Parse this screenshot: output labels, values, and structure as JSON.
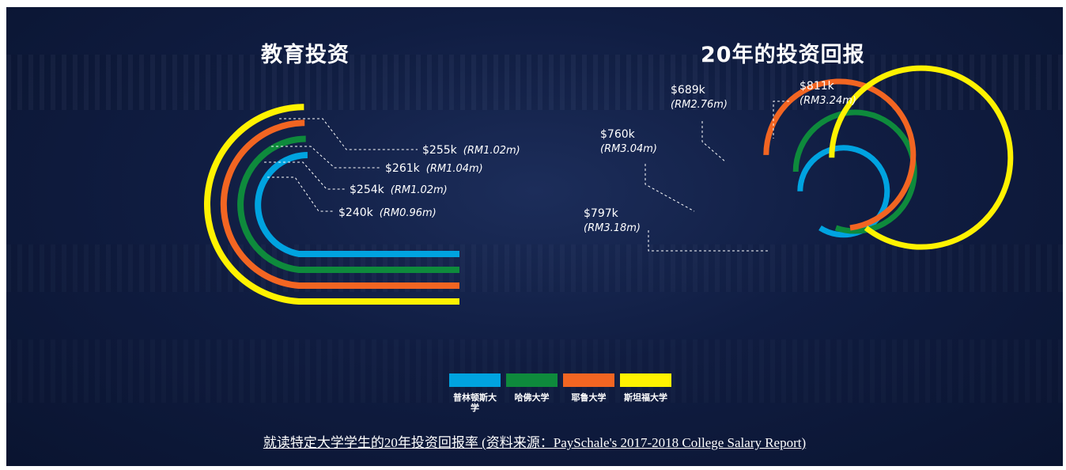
{
  "colors": {
    "princeton": "#00a3e0",
    "harvard": "#0e8a3c",
    "yale": "#f26522",
    "stanford": "#fff200",
    "leader": "#ffffff"
  },
  "legend": [
    {
      "label": "普林顿斯大学",
      "color": "#00a3e0"
    },
    {
      "label": "哈佛大学",
      "color": "#0e8a3c"
    },
    {
      "label": "耶鲁大学",
      "color": "#f26522"
    },
    {
      "label": "斯坦福大学",
      "color": "#fff200"
    }
  ],
  "source": "就读特定大学学生的20年投资回报率 (资料来源：PaySchale's 2017-2018 College Salary Report)",
  "chart_data": [
    {
      "type": "bar",
      "title": "教育投资",
      "categories": [
        "普林顿斯大学",
        "哈佛大学",
        "耶鲁大学",
        "斯坦福大学"
      ],
      "values_usd_k": [
        240,
        254,
        261,
        255
      ],
      "labels": [
        {
          "value": "$240k",
          "rm": "(RM0.96m)",
          "color": "#00a3e0"
        },
        {
          "value": "$254k",
          "rm": "(RM1.02m)",
          "color": "#0e8a3c"
        },
        {
          "value": "$261k",
          "rm": "(RM1.04m)",
          "color": "#f26522"
        },
        {
          "value": "$255k",
          "rm": "(RM1.02m)",
          "color": "#fff200"
        }
      ]
    },
    {
      "type": "bar",
      "title": "20年的投资回报",
      "categories": [
        "普林顿斯大学",
        "哈佛大学",
        "耶鲁大学",
        "斯坦福大学"
      ],
      "values_usd_k": [
        797,
        760,
        689,
        811
      ],
      "labels": [
        {
          "value": "$797k",
          "rm": "(RM3.18m)",
          "color": "#00a3e0"
        },
        {
          "value": "$760k",
          "rm": "(RM3.04m)",
          "color": "#0e8a3c"
        },
        {
          "value": "$689k",
          "rm": "(RM2.76m)",
          "color": "#f26522"
        },
        {
          "value": "$811k",
          "rm": "(RM3.24m)",
          "color": "#fff200"
        }
      ]
    }
  ]
}
